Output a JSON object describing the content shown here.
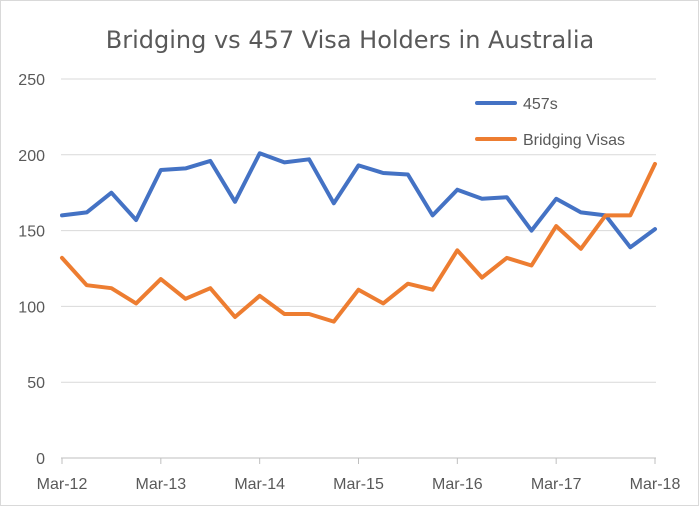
{
  "chart_data": {
    "type": "line",
    "title": "Bridging vs 457 Visa Holders in Australia",
    "xlabel": "",
    "ylabel": "",
    "ylim": [
      0,
      250
    ],
    "yticks": [
      0,
      50,
      100,
      150,
      200,
      250
    ],
    "x_tick_labels": [
      "Mar-12",
      "Mar-13",
      "Mar-14",
      "Mar-15",
      "Mar-16",
      "Mar-17",
      "Mar-18"
    ],
    "x": [
      "Mar-12",
      "Jun-12",
      "Sep-12",
      "Dec-12",
      "Mar-13",
      "Jun-13",
      "Sep-13",
      "Dec-13",
      "Mar-14",
      "Jun-14",
      "Sep-14",
      "Dec-14",
      "Mar-15",
      "Jun-15",
      "Sep-15",
      "Dec-15",
      "Mar-16",
      "Jun-16",
      "Sep-16",
      "Dec-16",
      "Mar-17",
      "Jun-17",
      "Sep-17",
      "Dec-17",
      "Mar-18"
    ],
    "series": [
      {
        "name": "457s",
        "color": "#4472c4",
        "values": [
          160,
          162,
          175,
          157,
          190,
          191,
          196,
          169,
          201,
          195,
          197,
          168,
          193,
          188,
          187,
          160,
          177,
          171,
          172,
          150,
          171,
          162,
          160,
          139,
          151
        ]
      },
      {
        "name": "Bridging Visas",
        "color": "#ed7d31",
        "values": [
          132,
          114,
          112,
          102,
          118,
          105,
          112,
          93,
          107,
          95,
          95,
          90,
          111,
          102,
          115,
          111,
          137,
          119,
          132,
          127,
          153,
          138,
          160,
          160,
          194
        ]
      }
    ],
    "grid": true,
    "legend_position": "top-right"
  }
}
